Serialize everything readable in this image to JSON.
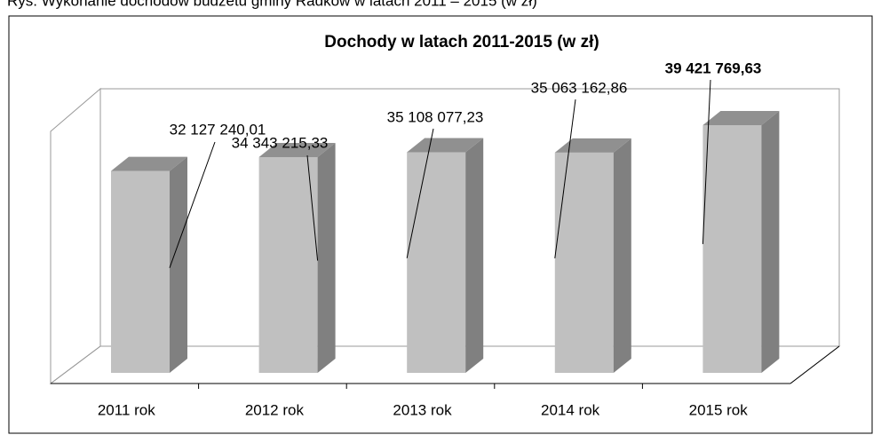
{
  "caption": "Rys. Wykonanie dochodów budżetu gminy Radków w latach 2011 – 2015 (w zł)",
  "chart_data": {
    "type": "bar3d",
    "title": "Dochody w latach 2011-2015 (w zł)",
    "categories": [
      "2011 rok",
      "2012 rok",
      "2013 rok",
      "2014 rok",
      "2015 rok"
    ],
    "values": [
      32127240.01,
      34343215.33,
      35108077.23,
      35063162.86,
      39421769.63
    ],
    "value_labels": [
      "32 127 240,01",
      "34 343 215,33",
      "35 108 077,23",
      "35 063 162,86",
      "39 421 769,63"
    ],
    "color": "#c0c0c0"
  }
}
